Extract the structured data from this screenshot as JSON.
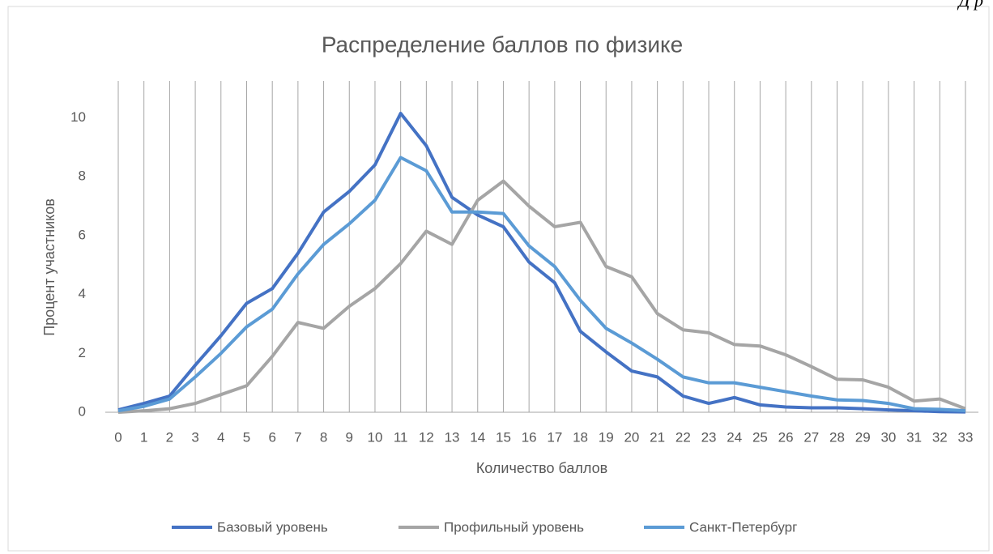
{
  "header_fragment": "Д р",
  "chart_data": {
    "type": "line",
    "title": "Распределение баллов по физике",
    "x_label": "Количество баллов",
    "y_label": "Процент участников",
    "categories": [
      "0",
      "1",
      "2",
      "3",
      "4",
      "5",
      "6",
      "7",
      "8",
      "9",
      "10",
      "11",
      "12",
      "13",
      "14",
      "15",
      "16",
      "17",
      "18",
      "19",
      "20",
      "21",
      "22",
      "23",
      "24",
      "25",
      "26",
      "27",
      "28",
      "29",
      "30",
      "31",
      "32",
      "33"
    ],
    "series": [
      {
        "name": "Базовый уровень",
        "color": "#4472c4",
        "values": [
          0.08,
          0.3,
          0.55,
          1.6,
          2.6,
          3.7,
          4.2,
          5.4,
          6.8,
          7.5,
          8.4,
          10.15,
          9.05,
          7.3,
          6.7,
          6.3,
          5.1,
          4.4,
          2.75,
          2.05,
          1.4,
          1.2,
          0.55,
          0.3,
          0.5,
          0.25,
          0.18,
          0.15,
          0.15,
          0.12,
          0.08,
          0.05,
          0.02,
          0.01
        ]
      },
      {
        "name": "Профильный уровень",
        "color": "#a5a5a5",
        "values": [
          0,
          0.05,
          0.12,
          0.3,
          0.6,
          0.9,
          1.9,
          3.05,
          2.85,
          3.6,
          4.2,
          5.05,
          6.15,
          5.7,
          7.2,
          7.85,
          7.0,
          6.3,
          6.45,
          4.95,
          4.6,
          3.35,
          2.8,
          2.7,
          2.3,
          2.25,
          1.95,
          1.55,
          1.12,
          1.1,
          0.85,
          0.38,
          0.45,
          0.12
        ]
      },
      {
        "name": "Санкт-Петербург",
        "color": "#5b9bd5",
        "values": [
          0.05,
          0.2,
          0.45,
          1.2,
          2.0,
          2.9,
          3.5,
          4.7,
          5.7,
          6.4,
          7.2,
          8.65,
          8.2,
          6.8,
          6.8,
          6.75,
          5.65,
          4.95,
          3.8,
          2.85,
          2.35,
          1.8,
          1.2,
          1.0,
          1.0,
          0.85,
          0.7,
          0.55,
          0.42,
          0.4,
          0.3,
          0.12,
          0.1,
          0.05
        ]
      }
    ],
    "ylim": [
      0,
      11.25
    ],
    "yticks": [
      0,
      2,
      4,
      6,
      8,
      10
    ],
    "x_grid": true,
    "legend": "bottom"
  }
}
